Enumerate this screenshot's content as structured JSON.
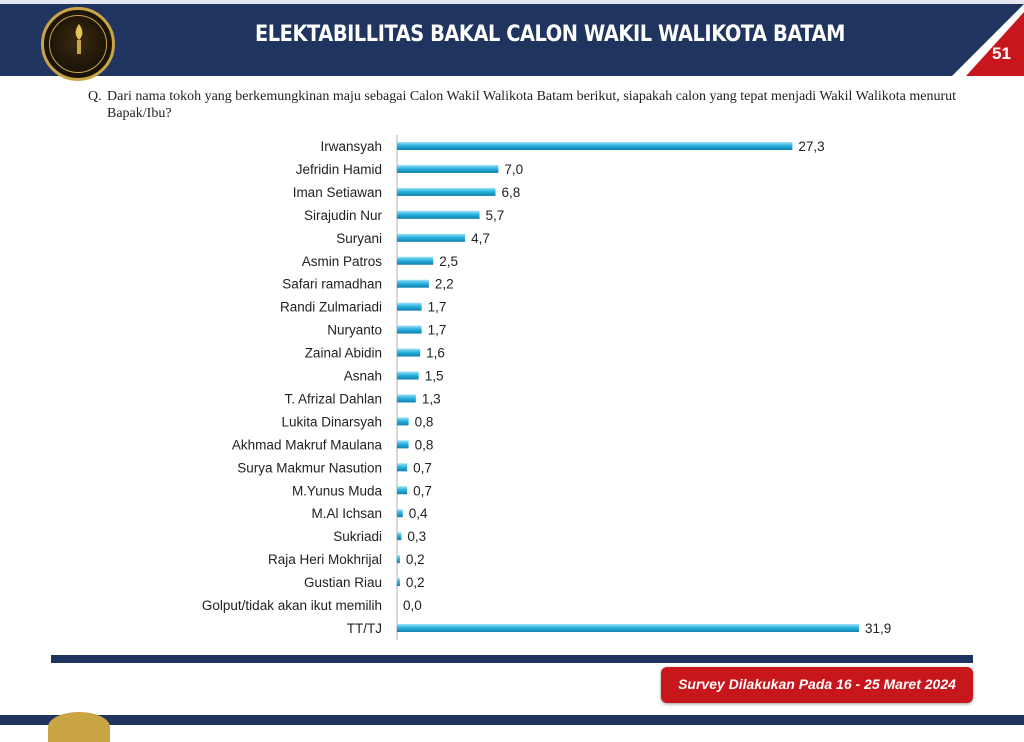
{
  "header": {
    "title": "ELEKTABILLITAS BAKAL CALON WAKIL WALIKOTA BATAM",
    "page_number": "51",
    "logo_icon": "torch-emblem-icon",
    "colors": {
      "navy": "#1f3560",
      "red": "#c8161d",
      "gold": "#c9a545"
    }
  },
  "question": {
    "prefix": "Q.",
    "text": "Dari nama tokoh yang berkemungkinan maju sebagai Calon Wakil Walikota Batam berikut, siapakah calon yang tepat menjadi Wakil Walikota menurut Bapak/Ibu?"
  },
  "chart_data": {
    "type": "bar",
    "orientation": "horizontal",
    "categories": [
      "Irwansyah",
      "Jefridin Hamid",
      "Iman Setiawan",
      "Sirajudin Nur",
      "Suryani",
      "Asmin Patros",
      "Safari ramadhan",
      "Randi Zulmariadi",
      "Nuryanto",
      "Zainal Abidin",
      "Asnah",
      "T. Afrizal Dahlan",
      "Lukita Dinarsyah",
      "Akhmad Makruf Maulana",
      "Surya Makmur Nasution",
      "M.Yunus Muda",
      "M.Al Ichsan",
      "Sukriadi",
      "Raja Heri Mokhrijal",
      "Gustian Riau",
      "Golput/tidak akan ikut memilih",
      "TT/TJ"
    ],
    "values": [
      27.3,
      7.0,
      6.8,
      5.7,
      4.7,
      2.5,
      2.2,
      1.7,
      1.7,
      1.6,
      1.5,
      1.3,
      0.8,
      0.8,
      0.7,
      0.7,
      0.4,
      0.3,
      0.2,
      0.2,
      0.0,
      31.9
    ],
    "value_labels": [
      "27,3",
      "7,0",
      "6,8",
      "5,7",
      "4,7",
      "2,5",
      "2,2",
      "1,7",
      "1,7",
      "1,6",
      "1,5",
      "1,3",
      "0,8",
      "0,8",
      "0,7",
      "0,7",
      "0,4",
      "0,3",
      "0,2",
      "0,2",
      "0,0",
      "31,9"
    ],
    "xlim": [
      0,
      31.9
    ],
    "bar_color": "#2bb3e0",
    "grid": false,
    "legend": "none"
  },
  "footer": {
    "survey_note": "Survey Dilakukan Pada 16 - 25 Maret 2024"
  }
}
